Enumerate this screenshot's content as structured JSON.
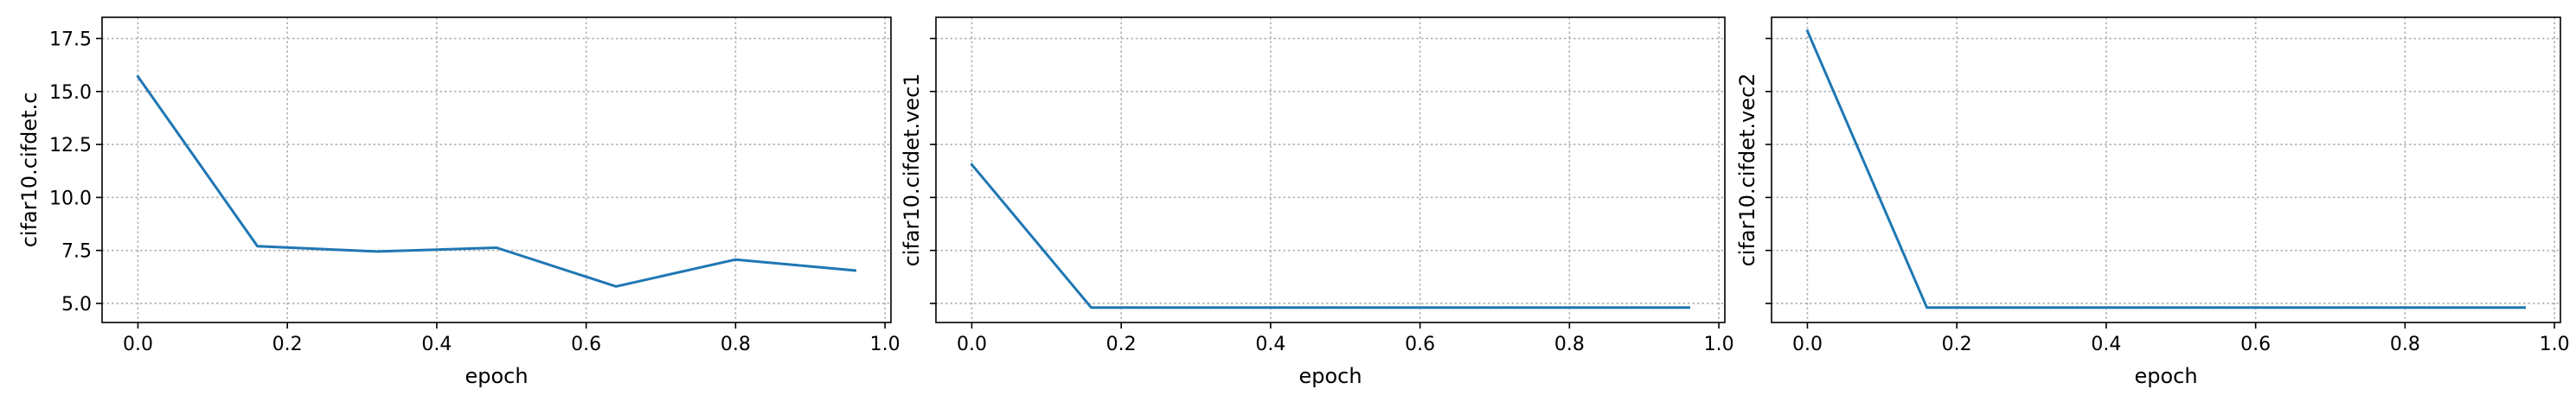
{
  "chart_data": [
    {
      "type": "line",
      "xlabel": "epoch",
      "ylabel": "cifar10.cifdet.c",
      "xlim": [
        -0.048,
        1.008
      ],
      "ylim": [
        4.1,
        18.5
      ],
      "xticks": [
        0.0,
        0.2,
        0.4,
        0.6,
        0.8,
        1.0
      ],
      "xticklabels": [
        "0.0",
        "0.2",
        "0.4",
        "0.6",
        "0.8",
        "1.0"
      ],
      "yticks": [
        5.0,
        7.5,
        10.0,
        12.5,
        15.0,
        17.5
      ],
      "yticklabels": [
        "5.0",
        "7.5",
        "10.0",
        "12.5",
        "15.0",
        "17.5"
      ],
      "grid": true,
      "series": [
        {
          "color": "#1f77b4",
          "x": [
            0.0,
            0.16,
            0.32,
            0.48,
            0.64,
            0.8,
            0.96
          ],
          "y": [
            15.7,
            7.7,
            7.45,
            7.63,
            5.8,
            7.07,
            6.55
          ]
        }
      ]
    },
    {
      "type": "line",
      "xlabel": "epoch",
      "ylabel": "cifar10.cifdet.vec1",
      "xlim": [
        -0.048,
        1.008
      ],
      "ylim": [
        4.1,
        18.5
      ],
      "xticks": [
        0.0,
        0.2,
        0.4,
        0.6,
        0.8,
        1.0
      ],
      "xticklabels": [
        "0.0",
        "0.2",
        "0.4",
        "0.6",
        "0.8",
        "1.0"
      ],
      "yticks": [
        5.0,
        7.5,
        10.0,
        12.5,
        15.0,
        17.5
      ],
      "yticklabels": [],
      "grid": true,
      "series": [
        {
          "color": "#1f77b4",
          "x": [
            0.0,
            0.16,
            0.32,
            0.48,
            0.64,
            0.8,
            0.96
          ],
          "y": [
            11.55,
            4.8,
            4.8,
            4.8,
            4.8,
            4.8,
            4.8
          ]
        }
      ]
    },
    {
      "type": "line",
      "xlabel": "epoch",
      "ylabel": "cifar10.cifdet.vec2",
      "xlim": [
        -0.048,
        1.008
      ],
      "ylim": [
        4.1,
        18.5
      ],
      "xticks": [
        0.0,
        0.2,
        0.4,
        0.6,
        0.8,
        1.0
      ],
      "xticklabels": [
        "0.0",
        "0.2",
        "0.4",
        "0.6",
        "0.8",
        "1.0"
      ],
      "yticks": [
        5.0,
        7.5,
        10.0,
        12.5,
        15.0,
        17.5
      ],
      "yticklabels": [],
      "grid": true,
      "series": [
        {
          "color": "#1f77b4",
          "x": [
            0.0,
            0.16,
            0.32,
            0.48,
            0.64,
            0.8,
            0.96
          ],
          "y": [
            17.85,
            4.8,
            4.8,
            4.8,
            4.8,
            4.8,
            4.8
          ]
        }
      ]
    }
  ]
}
